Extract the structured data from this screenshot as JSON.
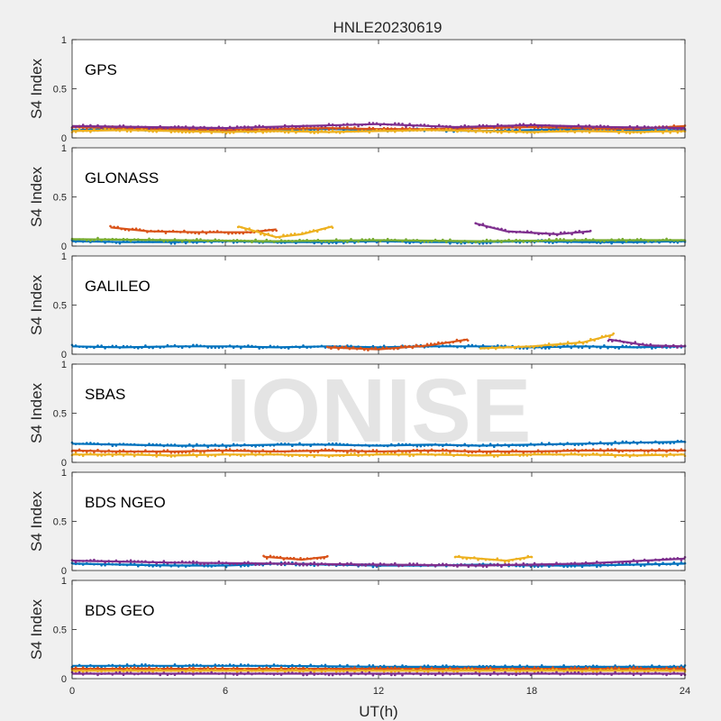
{
  "chart_data": {
    "type": "scatter",
    "title": "HNLE20230619",
    "xlabel": "UT(h)",
    "xlim": [
      0,
      24
    ],
    "xticks": [
      "0",
      "6",
      "12",
      "18",
      "24"
    ],
    "ylabel": "S4 Index",
    "ylim": [
      0,
      1
    ],
    "yticks": [
      "0",
      "0.5",
      "1"
    ],
    "watermark": "IONISE",
    "colors": [
      "#0072BD",
      "#D95319",
      "#EDB120",
      "#7E2F8E",
      "#77AC30",
      "#4DBEEE",
      "#A2142F"
    ],
    "panels": [
      {
        "name": "GPS",
        "series": [
          {
            "x": [
              0,
              2,
              4,
              6,
              8,
              10,
              12,
              14,
              16,
              18,
              20,
              22,
              24
            ],
            "y": [
              0.08,
              0.09,
              0.08,
              0.07,
              0.08,
              0.09,
              0.08,
              0.08,
              0.07,
              0.08,
              0.09,
              0.08,
              0.08
            ]
          },
          {
            "x": [
              0,
              2,
              4,
              6,
              8,
              10,
              12,
              14,
              16,
              18,
              20,
              22,
              24
            ],
            "y": [
              0.11,
              0.1,
              0.09,
              0.08,
              0.09,
              0.1,
              0.09,
              0.09,
              0.1,
              0.11,
              0.1,
              0.09,
              0.12
            ]
          },
          {
            "x": [
              0,
              2,
              4,
              6,
              8,
              10,
              12,
              14,
              16,
              18,
              20,
              22,
              24
            ],
            "y": [
              0.07,
              0.08,
              0.07,
              0.06,
              0.07,
              0.06,
              0.07,
              0.08,
              0.07,
              0.06,
              0.07,
              0.06,
              0.07
            ]
          },
          {
            "x": [
              0,
              3,
              6,
              9,
              12,
              15,
              18,
              21,
              24
            ],
            "y": [
              0.12,
              0.11,
              0.1,
              0.12,
              0.14,
              0.11,
              0.13,
              0.11,
              0.1
            ]
          }
        ]
      },
      {
        "name": "GLONASS",
        "series": [
          {
            "x": [
              0,
              2,
              4,
              6,
              8,
              10,
              12,
              14,
              16,
              18,
              20,
              22,
              24
            ],
            "y": [
              0.05,
              0.04,
              0.04,
              0.05,
              0.04,
              0.04,
              0.05,
              0.04,
              0.04,
              0.05,
              0.04,
              0.04,
              0.05
            ]
          },
          {
            "x": [
              1.5,
              3,
              5,
              7,
              8
            ],
            "y": [
              0.19,
              0.15,
              0.14,
              0.14,
              0.17
            ]
          },
          {
            "x": [
              6.5,
              8,
              9,
              10.2
            ],
            "y": [
              0.2,
              0.09,
              0.12,
              0.2
            ]
          },
          {
            "x": [
              15.8,
              17,
              19,
              20.3
            ],
            "y": [
              0.23,
              0.15,
              0.12,
              0.15
            ]
          },
          {
            "x": [
              0,
              4,
              8,
              12,
              16,
              20,
              24
            ],
            "y": [
              0.07,
              0.06,
              0.05,
              0.06,
              0.05,
              0.06,
              0.06
            ]
          }
        ]
      },
      {
        "name": "GALILEO",
        "series": [
          {
            "x": [
              0,
              2,
              4,
              6,
              8,
              10,
              12,
              14,
              16,
              18,
              20,
              22,
              24
            ],
            "y": [
              0.08,
              0.07,
              0.08,
              0.08,
              0.07,
              0.08,
              0.07,
              0.08,
              0.08,
              0.07,
              0.08,
              0.07,
              0.08
            ]
          },
          {
            "x": [
              10,
              12,
              14,
              15.5
            ],
            "y": [
              0.07,
              0.05,
              0.09,
              0.15
            ]
          },
          {
            "x": [
              16,
              18,
              20,
              21.2
            ],
            "y": [
              0.06,
              0.08,
              0.12,
              0.2
            ]
          },
          {
            "x": [
              21,
              22.5,
              24
            ],
            "y": [
              0.15,
              0.09,
              0.08
            ]
          }
        ]
      },
      {
        "name": "SBAS",
        "series": [
          {
            "x": [
              0,
              2,
              4,
              6,
              8,
              10,
              12,
              14,
              16,
              18,
              20,
              22,
              24
            ],
            "y": [
              0.19,
              0.18,
              0.17,
              0.17,
              0.18,
              0.18,
              0.17,
              0.18,
              0.17,
              0.18,
              0.19,
              0.2,
              0.21
            ]
          },
          {
            "x": [
              0,
              2,
              4,
              6,
              8,
              10,
              12,
              14,
              16,
              18,
              20,
              22,
              24
            ],
            "y": [
              0.12,
              0.11,
              0.11,
              0.12,
              0.11,
              0.12,
              0.11,
              0.12,
              0.11,
              0.11,
              0.12,
              0.12,
              0.12
            ]
          },
          {
            "x": [
              0,
              2,
              4,
              6,
              8,
              10,
              12,
              14,
              16,
              18,
              20,
              22,
              24
            ],
            "y": [
              0.08,
              0.08,
              0.07,
              0.08,
              0.08,
              0.07,
              0.08,
              0.08,
              0.07,
              0.08,
              0.08,
              0.07,
              0.08
            ]
          }
        ]
      },
      {
        "name": "BDS NGEO",
        "series": [
          {
            "x": [
              0,
              2,
              4,
              6,
              8,
              10,
              12,
              14,
              16,
              18,
              20,
              22,
              24
            ],
            "y": [
              0.07,
              0.06,
              0.05,
              0.05,
              0.07,
              0.06,
              0.05,
              0.05,
              0.06,
              0.05,
              0.05,
              0.06,
              0.07
            ]
          },
          {
            "x": [
              7.5,
              9,
              10
            ],
            "y": [
              0.14,
              0.11,
              0.14
            ]
          },
          {
            "x": [
              15,
              17,
              18
            ],
            "y": [
              0.14,
              0.1,
              0.14
            ]
          },
          {
            "x": [
              0,
              4,
              8,
              12,
              16,
              20,
              24
            ],
            "y": [
              0.1,
              0.08,
              0.07,
              0.06,
              0.05,
              0.07,
              0.12
            ]
          }
        ]
      },
      {
        "name": "BDS GEO",
        "series": [
          {
            "x": [
              0,
              4,
              8,
              12,
              16,
              20,
              24
            ],
            "y": [
              0.13,
              0.13,
              0.13,
              0.12,
              0.12,
              0.12,
              0.12
            ]
          },
          {
            "x": [
              0,
              4,
              8,
              12,
              16,
              20,
              24
            ],
            "y": [
              0.1,
              0.1,
              0.1,
              0.1,
              0.1,
              0.1,
              0.1
            ]
          },
          {
            "x": [
              0,
              4,
              8,
              12,
              16,
              20,
              24
            ],
            "y": [
              0.08,
              0.08,
              0.08,
              0.08,
              0.08,
              0.08,
              0.08
            ]
          },
          {
            "x": [
              0,
              4,
              8,
              12,
              16,
              20,
              24
            ],
            "y": [
              0.05,
              0.05,
              0.05,
              0.05,
              0.05,
              0.05,
              0.05
            ]
          }
        ]
      }
    ]
  }
}
